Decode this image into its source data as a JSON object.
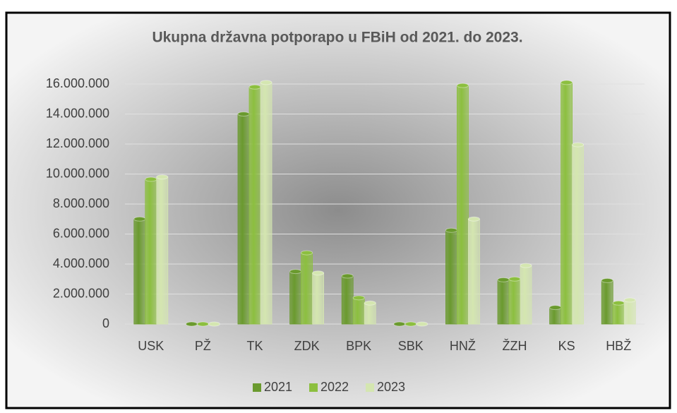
{
  "chart_data": {
    "type": "bar",
    "title": "Ukupna državna potporapo u FBiH od 2021. do 2023.",
    "categories": [
      "USK",
      "PŽ",
      "TK",
      "ZDK",
      "BPK",
      "SBK",
      "HNŽ",
      "ŽZH",
      "KS",
      "HBŽ"
    ],
    "series": [
      {
        "name": "2021",
        "color": "#6a9a2e",
        "values": [
          7000000,
          0,
          14000000,
          3500000,
          3200000,
          0,
          6250000,
          2950000,
          1100000,
          2900000
        ]
      },
      {
        "name": "2022",
        "color": "#8cbf3f",
        "values": [
          9650000,
          0,
          15800000,
          4750000,
          1750000,
          0,
          15900000,
          3000000,
          16100000,
          1400000
        ]
      },
      {
        "name": "2023",
        "color": "#d4e6b0",
        "values": [
          9800000,
          0,
          16100000,
          3400000,
          1400000,
          0,
          7000000,
          3900000,
          11950000,
          1600000
        ]
      }
    ],
    "ylim": [
      0,
      16000000
    ],
    "yticks": [
      {
        "value": 0,
        "label": "0"
      },
      {
        "value": 2000000,
        "label": "2.000.000"
      },
      {
        "value": 4000000,
        "label": "4.000.000"
      },
      {
        "value": 6000000,
        "label": "6.000.000"
      },
      {
        "value": 8000000,
        "label": "8.000.000"
      },
      {
        "value": 10000000,
        "label": "10.000.000"
      },
      {
        "value": 12000000,
        "label": "12.000.000"
      },
      {
        "value": 14000000,
        "label": "14.000.000"
      },
      {
        "value": 16000000,
        "label": "16.000.000"
      }
    ],
    "grid": true,
    "legend": "bottom"
  }
}
